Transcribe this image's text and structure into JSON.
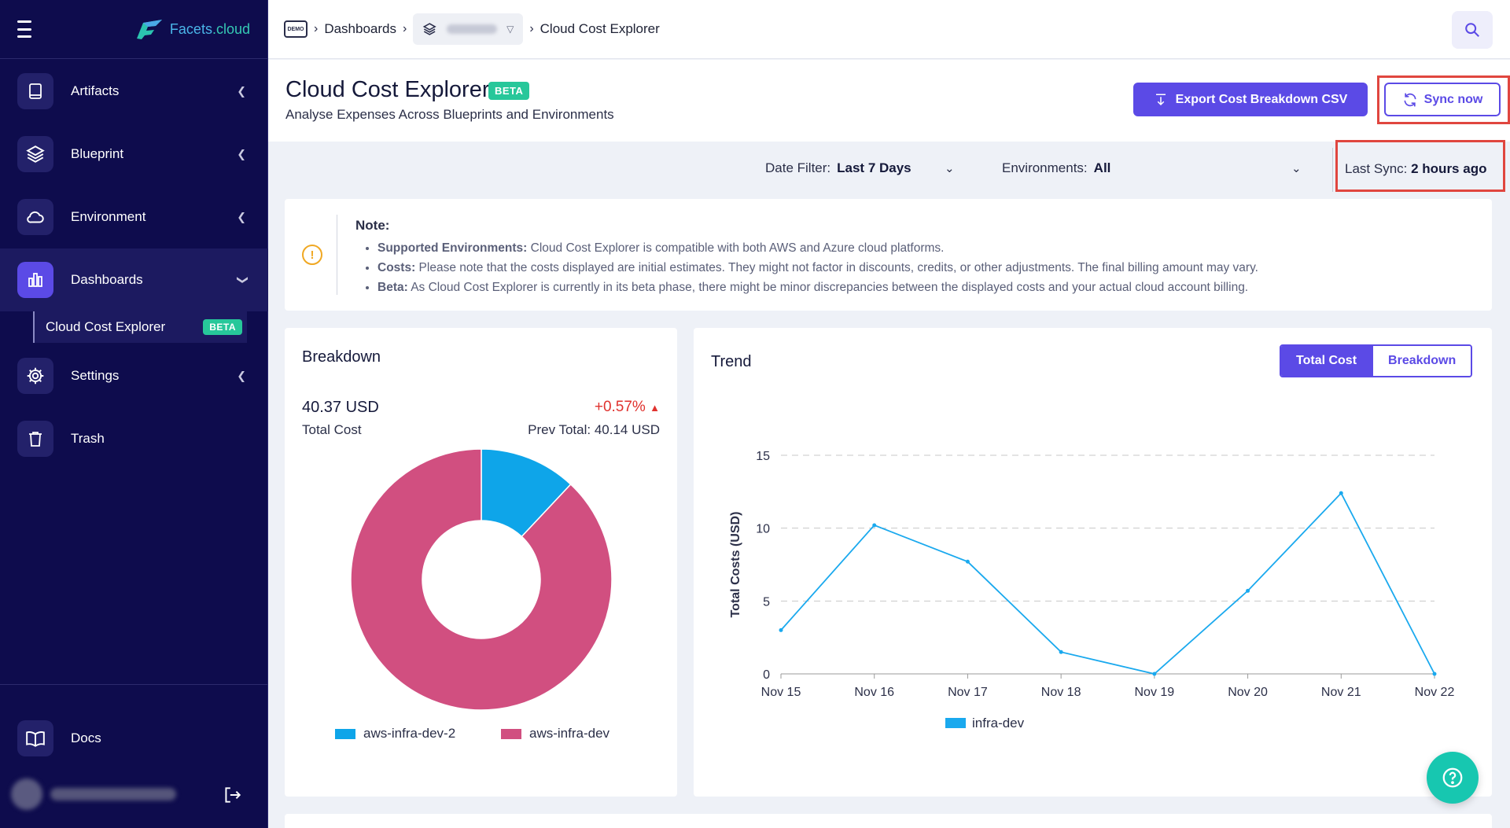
{
  "brand": {
    "name_a": "Facets",
    "name_b": ".cloud"
  },
  "sidebar": {
    "items": [
      {
        "label": "Artifacts",
        "icon": "book-icon"
      },
      {
        "label": "Blueprint",
        "icon": "layers-icon"
      },
      {
        "label": "Environment",
        "icon": "cloud-icon"
      },
      {
        "label": "Dashboards",
        "icon": "bar-chart-icon"
      },
      {
        "label": "Settings",
        "icon": "gear-icon"
      },
      {
        "label": "Trash",
        "icon": "trash-icon"
      }
    ],
    "subitem": {
      "label": "Cloud Cost Explorer",
      "badge": "BETA"
    },
    "docs": "Docs"
  },
  "breadcrumb": {
    "demo": "DEMO",
    "dashboards": "Dashboards",
    "current": "Cloud Cost Explorer"
  },
  "header": {
    "title": "Cloud Cost Explorer",
    "badge": "BETA",
    "subtitle": "Analyse Expenses Across Blueprints and Environments",
    "export_label": "Export Cost Breakdown CSV",
    "sync_label": "Sync now"
  },
  "filters": {
    "date_label": "Date Filter:",
    "date_value": "Last 7 Days",
    "env_label": "Environments:",
    "env_value": "All",
    "last_sync_label": "Last Sync:",
    "last_sync_value": "2 hours ago"
  },
  "note": {
    "title": "Note:",
    "items": [
      {
        "head": "Supported Environments:",
        "text": " Cloud Cost Explorer is compatible with both AWS and Azure cloud platforms."
      },
      {
        "head": "Costs:",
        "text": " Please note that the costs displayed are initial estimates. They might not factor in discounts, credits, or other adjustments. The final billing amount may vary."
      },
      {
        "head": "Beta:",
        "text": " As Cloud Cost Explorer is currently in its beta phase, there might be minor discrepancies between the displayed costs and your actual cloud account billing."
      }
    ]
  },
  "breakdown": {
    "title": "Breakdown",
    "total_value": "40.37 USD",
    "total_label": "Total Cost",
    "change": "+0.57%",
    "prev_total": "Prev Total: 40.14 USD"
  },
  "trend": {
    "title": "Trend",
    "toggle_on": "Total Cost",
    "toggle_off": "Breakdown"
  },
  "colors": {
    "accent": "#5b4ae6",
    "donut_a": "#0ea5e9",
    "donut_b": "#d14f80",
    "line": "#1aa9ee",
    "success": "#27c79a"
  },
  "chart_data": [
    {
      "type": "pie",
      "title": "Breakdown",
      "series": [
        {
          "name": "aws-infra-dev-2",
          "value": 12,
          "color": "#0ea5e9"
        },
        {
          "name": "aws-infra-dev",
          "value": 88,
          "color": "#d14f80"
        }
      ],
      "donut": true,
      "legend": "bottom"
    },
    {
      "type": "line",
      "title": "Trend",
      "ylabel": "Total Costs (USD)",
      "categories": [
        "Nov 15",
        "Nov 16",
        "Nov 17",
        "Nov 18",
        "Nov 19",
        "Nov 20",
        "Nov 21",
        "Nov 22"
      ],
      "yticks": [
        0,
        5,
        10,
        15
      ],
      "ylim": [
        0,
        15
      ],
      "grid": true,
      "legend": "bottom",
      "series": [
        {
          "name": "infra-dev",
          "color": "#1aa9ee",
          "values": [
            3.0,
            10.2,
            7.7,
            1.5,
            0.0,
            5.7,
            12.4,
            0.0
          ]
        }
      ]
    }
  ]
}
